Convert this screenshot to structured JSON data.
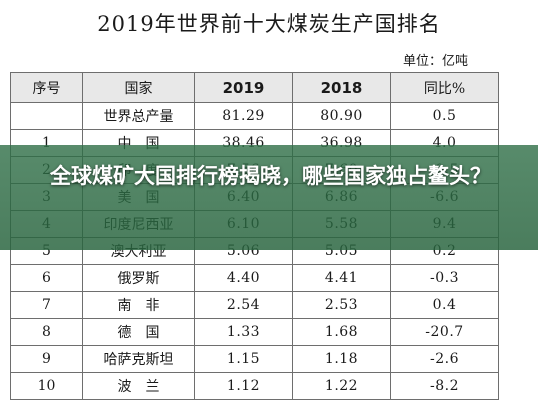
{
  "title": "2019年世界前十大煤炭生产国排名",
  "unit": "单位：亿吨",
  "table": {
    "headers": [
      "序号",
      "国家",
      "2019",
      "2018",
      "同比%"
    ],
    "rows": [
      {
        "rank": "",
        "country": "世界总产量",
        "y2019": "81.29",
        "y2018": "80.90",
        "change": "0.5"
      },
      {
        "rank": "1",
        "country": "中　国",
        "y2019": "38.46",
        "y2018": "36.98",
        "change": "4.0"
      },
      {
        "rank": "2",
        "country": "印　度",
        "y2019": "7.56",
        "y2018": "7.60",
        "change": "-0.5"
      },
      {
        "rank": "3",
        "country": "美　国",
        "y2019": "6.40",
        "y2018": "6.86",
        "change": "-6.6"
      },
      {
        "rank": "4",
        "country": "印度尼西亚",
        "y2019": "6.10",
        "y2018": "5.58",
        "change": "9.4"
      },
      {
        "rank": "5",
        "country": "澳大利亚",
        "y2019": "5.06",
        "y2018": "5.05",
        "change": "0.2"
      },
      {
        "rank": "6",
        "country": "俄罗斯",
        "y2019": "4.40",
        "y2018": "4.41",
        "change": "-0.3"
      },
      {
        "rank": "7",
        "country": "南　非",
        "y2019": "2.54",
        "y2018": "2.53",
        "change": "0.4"
      },
      {
        "rank": "8",
        "country": "德　国",
        "y2019": "1.33",
        "y2018": "1.68",
        "change": "-20.7"
      },
      {
        "rank": "9",
        "country": "哈萨克斯坦",
        "y2019": "1.15",
        "y2018": "1.18",
        "change": "-2.6"
      },
      {
        "rank": "10",
        "country": "波　兰",
        "y2019": "1.12",
        "y2018": "1.22",
        "change": "-8.2"
      }
    ]
  },
  "overlay": {
    "headline": "全球煤矿大国排行榜揭晓，哪些国家独占鳌头？",
    "color": "#2e6e46"
  }
}
